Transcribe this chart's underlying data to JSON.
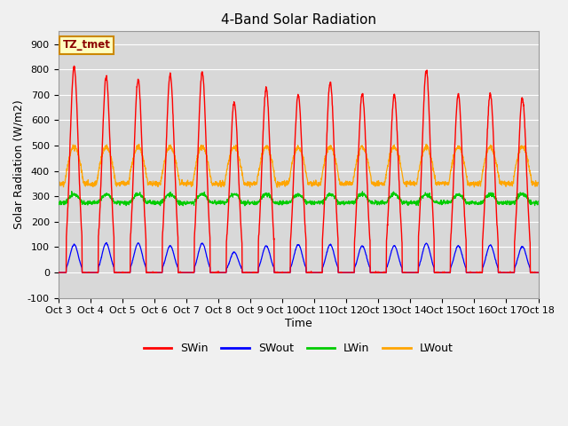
{
  "title": "4-Band Solar Radiation",
  "xlabel": "Time",
  "ylabel": "Solar Radiation (W/m2)",
  "ylim": [
    -100,
    950
  ],
  "yticks": [
    -100,
    0,
    100,
    200,
    300,
    400,
    500,
    600,
    700,
    800,
    900
  ],
  "annotation": "TZ_tmet",
  "legend_labels": [
    "SWin",
    "SWout",
    "LWin",
    "LWout"
  ],
  "legend_colors": [
    "#ff0000",
    "#0000ff",
    "#00cc00",
    "#ffa500"
  ],
  "bg_color": "#f0f0f0",
  "plot_bg_color": "#d8d8d8",
  "n_days": 15,
  "start_day": 3,
  "title_fontsize": 11,
  "axis_fontsize": 9,
  "tick_fontsize": 8,
  "SWin_peaks": [
    810,
    770,
    760,
    780,
    790,
    670,
    725,
    700,
    750,
    706,
    700,
    795,
    700,
    705,
    690
  ],
  "SWout_peaks": [
    110,
    115,
    115,
    105,
    115,
    80,
    105,
    110,
    110,
    105,
    105,
    115,
    105,
    108,
    102
  ],
  "LWin_base": 275,
  "LWin_day_peak": 330,
  "LWout_base": 350,
  "LWout_day_peak": 495
}
